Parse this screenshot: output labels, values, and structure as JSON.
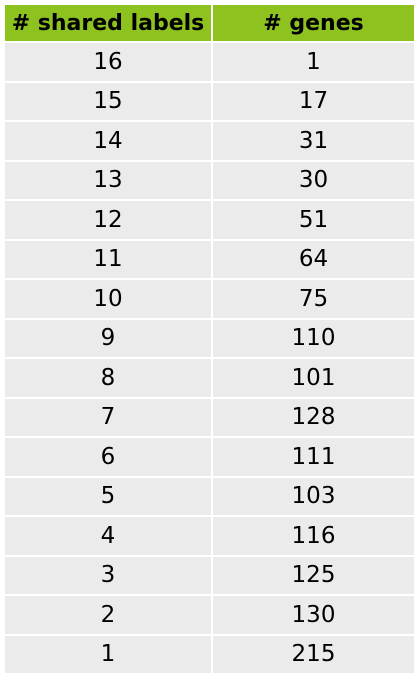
{
  "chart_data": {
    "type": "table",
    "columns": [
      "# shared labels",
      "# genes"
    ],
    "rows": [
      [
        "16",
        "1"
      ],
      [
        "15",
        "17"
      ],
      [
        "14",
        "31"
      ],
      [
        "13",
        "30"
      ],
      [
        "12",
        "51"
      ],
      [
        "11",
        "64"
      ],
      [
        "10",
        "75"
      ],
      [
        "9",
        "110"
      ],
      [
        "8",
        "101"
      ],
      [
        "7",
        "128"
      ],
      [
        "6",
        "111"
      ],
      [
        "5",
        "103"
      ],
      [
        "4",
        "116"
      ],
      [
        "3",
        "125"
      ],
      [
        "2",
        "130"
      ],
      [
        "1",
        "215"
      ]
    ]
  },
  "colors": {
    "header_bg": "#8dc21f",
    "row_bg": "#ebebeb",
    "text": "#000000"
  }
}
